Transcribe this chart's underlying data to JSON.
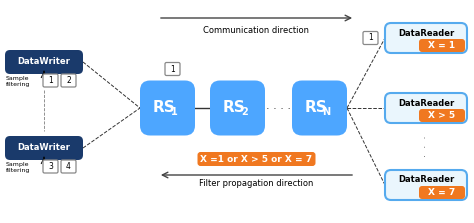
{
  "bg_color": "#ffffff",
  "dw_color": "#1a3a6b",
  "rs_color": "#4da6ff",
  "dr_bg_color": "#eaf6fd",
  "dr_border_color": "#55aaee",
  "orange_color": "#f07820",
  "sample_box_color": "#ffffff",
  "sample_box_border": "#888888",
  "arrow_color": "#444444",
  "line_color": "#333333",
  "dw1_label": "DataWriter",
  "dw2_label": "DataWriter",
  "rs1_label": "RS",
  "rs1_sub": "1",
  "rs2_label": "RS",
  "rs2_sub": "2",
  "rsN_label": "RS",
  "rsN_sub": "N",
  "dr1_label": "DataReader",
  "dr2_label": "DataReader",
  "dr3_label": "DataReader",
  "dr1_filter": "X = 1",
  "dr2_filter": "X > 5",
  "dr3_filter": "X = 7",
  "filter_expr": "X =1 or X > 5 or X = 7",
  "comm_dir_label": "Communication direction",
  "filter_dir_label": "Filter propagation direction",
  "sample_filtering1": "Sample\nfiltering",
  "sample_filtering2": "Sample\nfiltering",
  "dots_rs": "· · · ·",
  "dots_dr": "·\n·\n·",
  "figw": 4.74,
  "figh": 2.23,
  "dpi": 100
}
